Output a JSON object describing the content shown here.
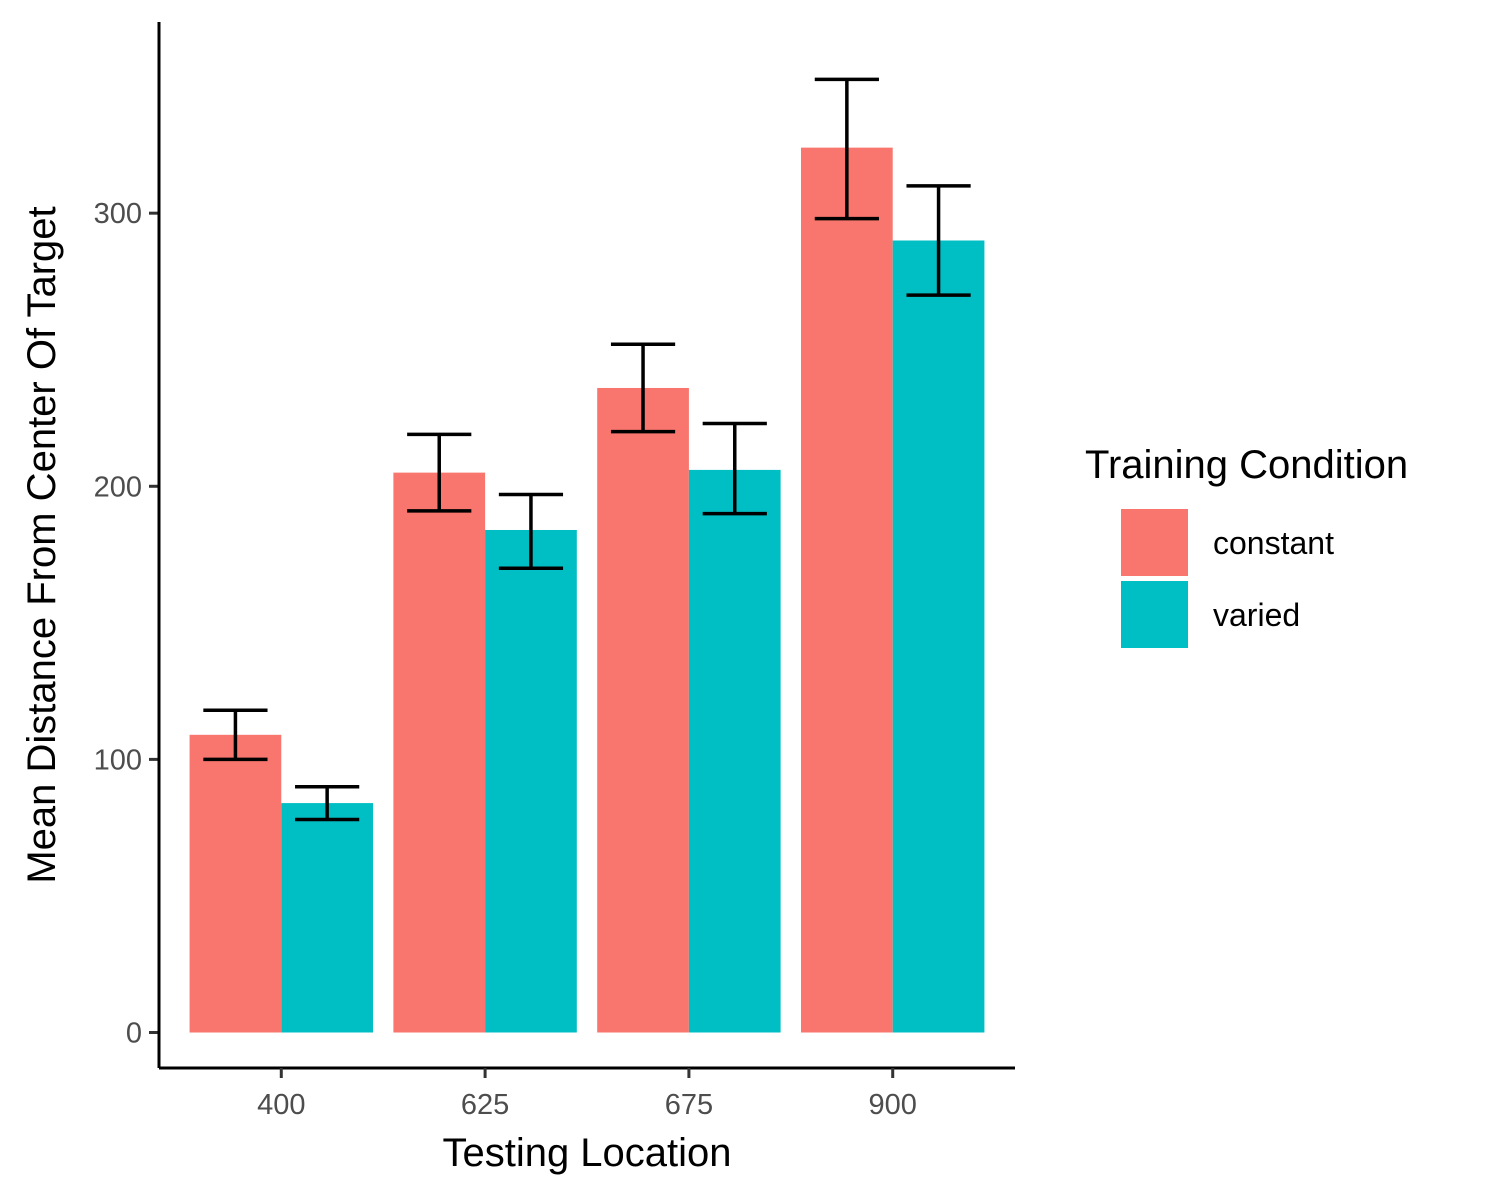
{
  "chart_data": {
    "type": "bar",
    "title": "",
    "xlabel": "Testing Location",
    "ylabel": "Mean Distance From Center Of Target",
    "categories": [
      "400",
      "625",
      "675",
      "900"
    ],
    "ylim": [
      -13,
      370
    ],
    "yticks": [
      0,
      100,
      200,
      300
    ],
    "grid": false,
    "legend": {
      "title": "Training Condition",
      "position": "right"
    },
    "series": [
      {
        "name": "constant",
        "color": "#F8766D",
        "values": [
          109,
          205,
          236,
          324
        ],
        "error_low": [
          100,
          191,
          220,
          298
        ],
        "error_high": [
          118,
          219,
          252,
          349
        ]
      },
      {
        "name": "varied",
        "color": "#00BFC4",
        "values": [
          84,
          184,
          206,
          290
        ],
        "error_low": [
          78,
          170,
          190,
          270
        ],
        "error_high": [
          90,
          197,
          223,
          310
        ]
      }
    ]
  }
}
